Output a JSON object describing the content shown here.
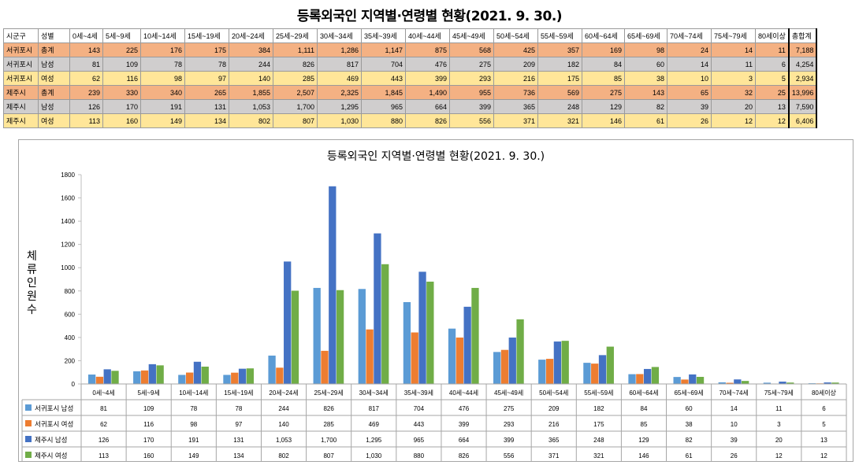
{
  "title": "등록외국인 지역별·연령별 현황(2021. 9. 30.)",
  "table": {
    "headers": [
      "시군구",
      "성별",
      "0세~4세",
      "5세~9세",
      "10세~14세",
      "15세~19세",
      "20세~24세",
      "25세~29세",
      "30세~34세",
      "35세~39세",
      "40세~44세",
      "45세~49세",
      "50세~54세",
      "55세~59세",
      "60세~64세",
      "65세~69세",
      "70세~74세",
      "75세~79세",
      "80세이상",
      "총합계"
    ],
    "rows": [
      {
        "style": "r-org",
        "cells": [
          "서귀포시",
          "총계",
          "143",
          "225",
          "176",
          "175",
          "384",
          "1,111",
          "1,286",
          "1,147",
          "875",
          "568",
          "425",
          "357",
          "169",
          "98",
          "24",
          "14",
          "11",
          "7,188"
        ]
      },
      {
        "style": "r-gry",
        "cells": [
          "서귀포시",
          "남성",
          "81",
          "109",
          "78",
          "78",
          "244",
          "826",
          "817",
          "704",
          "476",
          "275",
          "209",
          "182",
          "84",
          "60",
          "14",
          "11",
          "6",
          "4,254"
        ]
      },
      {
        "style": "r-yel",
        "cells": [
          "서귀포시",
          "여성",
          "62",
          "116",
          "98",
          "97",
          "140",
          "285",
          "469",
          "443",
          "399",
          "293",
          "216",
          "175",
          "85",
          "38",
          "10",
          "3",
          "5",
          "2,934"
        ]
      },
      {
        "style": "r-org",
        "cells": [
          "제주시",
          "총계",
          "239",
          "330",
          "340",
          "265",
          "1,855",
          "2,507",
          "2,325",
          "1,845",
          "1,490",
          "955",
          "736",
          "569",
          "275",
          "143",
          "65",
          "32",
          "25",
          "13,996"
        ]
      },
      {
        "style": "r-gry",
        "cells": [
          "제주시",
          "남성",
          "126",
          "170",
          "191",
          "131",
          "1,053",
          "1,700",
          "1,295",
          "965",
          "664",
          "399",
          "365",
          "248",
          "129",
          "82",
          "39",
          "20",
          "13",
          "7,590"
        ]
      },
      {
        "style": "r-yel",
        "cells": [
          "제주시",
          "여성",
          "113",
          "160",
          "149",
          "134",
          "802",
          "807",
          "1,030",
          "880",
          "826",
          "556",
          "371",
          "321",
          "146",
          "61",
          "26",
          "12",
          "12",
          "6,406"
        ]
      }
    ]
  },
  "chart_data": {
    "type": "bar",
    "title": "등록외국인 지역별·연령별 현황(2021. 9. 30.)",
    "ylabel": "체류인원수",
    "xlabel": "",
    "ylim": [
      0,
      1800
    ],
    "yticks": [
      0,
      200,
      400,
      600,
      800,
      1000,
      1200,
      1400,
      1600,
      1800
    ],
    "grid": false,
    "legend": "data-table-bottom",
    "categories": [
      "0세~4세",
      "5세~9세",
      "10세~14세",
      "15세~19세",
      "20세~24세",
      "25세~29세",
      "30세~34세",
      "35세~39세",
      "40세~44세",
      "45세~49세",
      "50세~54세",
      "55세~59세",
      "60세~64세",
      "65세~69세",
      "70세~74세",
      "75세~79세",
      "80세이상"
    ],
    "series": [
      {
        "name": "서귀포시 남성",
        "color": "#5b9bd5",
        "values": [
          81,
          109,
          78,
          78,
          244,
          826,
          817,
          704,
          476,
          275,
          209,
          182,
          84,
          60,
          14,
          11,
          6
        ]
      },
      {
        "name": "서귀포시 여성",
        "color": "#ed7d31",
        "values": [
          62,
          116,
          98,
          97,
          140,
          285,
          469,
          443,
          399,
          293,
          216,
          175,
          85,
          38,
          10,
          3,
          5
        ]
      },
      {
        "name": "제주시 남성",
        "color": "#4472c4",
        "values": [
          126,
          170,
          191,
          131,
          1053,
          1700,
          1295,
          965,
          664,
          399,
          365,
          248,
          129,
          82,
          39,
          20,
          13
        ]
      },
      {
        "name": "제주시 여성",
        "color": "#70ad47",
        "values": [
          113,
          160,
          149,
          134,
          802,
          807,
          1030,
          880,
          826,
          556,
          371,
          321,
          146,
          61,
          26,
          12,
          12
        ]
      }
    ],
    "display_values": [
      [
        "81",
        "109",
        "78",
        "78",
        "244",
        "826",
        "817",
        "704",
        "476",
        "275",
        "209",
        "182",
        "84",
        "60",
        "14",
        "11",
        "6"
      ],
      [
        "62",
        "116",
        "98",
        "97",
        "140",
        "285",
        "469",
        "443",
        "399",
        "293",
        "216",
        "175",
        "85",
        "38",
        "10",
        "3",
        "5"
      ],
      [
        "126",
        "170",
        "191",
        "131",
        "1,053",
        "1,700",
        "1,295",
        "965",
        "664",
        "399",
        "365",
        "248",
        "129",
        "82",
        "39",
        "20",
        "13"
      ],
      [
        "113",
        "160",
        "149",
        "134",
        "802",
        "807",
        "1,030",
        "880",
        "826",
        "556",
        "371",
        "321",
        "146",
        "61",
        "26",
        "12",
        "12"
      ]
    ]
  }
}
